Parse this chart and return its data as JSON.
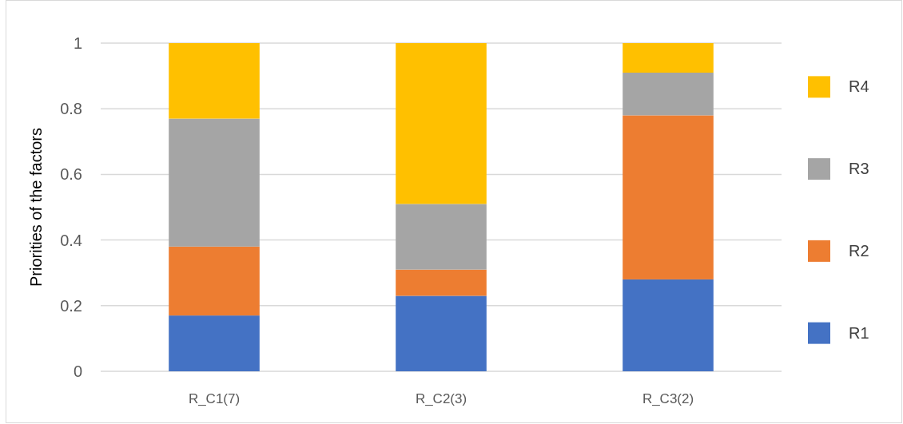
{
  "chart_data": {
    "type": "bar",
    "stacked": true,
    "ylabel": "Priorities of the factors",
    "categories": [
      "R_C1(7)",
      "R_C2(3)",
      "R_C3(2)"
    ],
    "series": [
      {
        "name": "R1",
        "color": "#4472c4",
        "values": [
          0.17,
          0.23,
          0.28
        ]
      },
      {
        "name": "R2",
        "color": "#ed7d31",
        "values": [
          0.21,
          0.08,
          0.5
        ]
      },
      {
        "name": "R3",
        "color": "#a5a5a5",
        "values": [
          0.39,
          0.2,
          0.13
        ]
      },
      {
        "name": "R4",
        "color": "#ffc000",
        "values": [
          0.23,
          0.49,
          0.09
        ]
      }
    ],
    "ylim": [
      0,
      1
    ],
    "yticks": [
      0,
      0.2,
      0.4,
      0.6,
      0.8,
      1
    ],
    "grid": "y",
    "legend": "right"
  }
}
